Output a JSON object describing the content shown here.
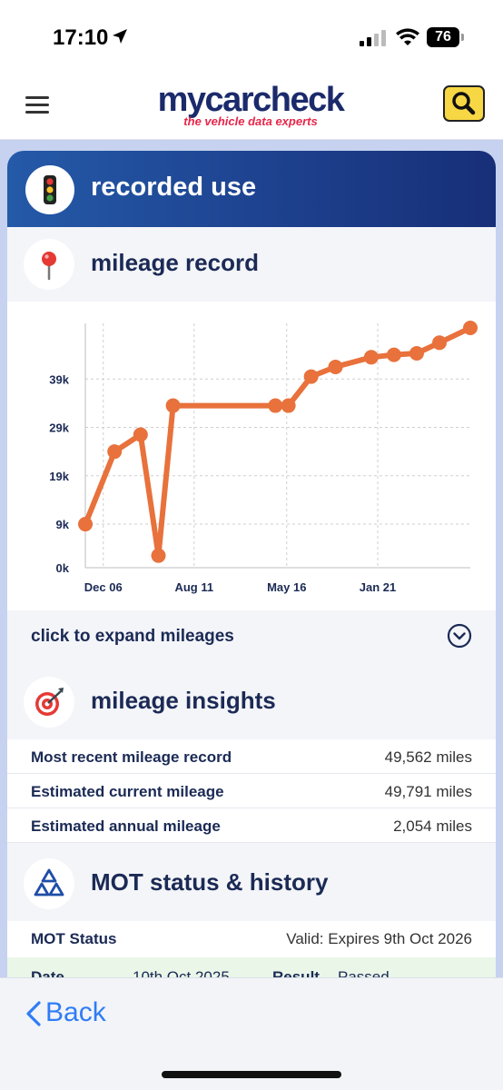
{
  "status_bar": {
    "time": "17:10",
    "battery": "76"
  },
  "header": {
    "brand": "mycarcheck",
    "tagline": "the vehicle data experts"
  },
  "recorded_use": {
    "title": "recorded use"
  },
  "mileage_record": {
    "title": "mileage record",
    "expand_label": "click to expand mileages"
  },
  "chart_data": {
    "type": "line",
    "title": "",
    "xlabel": "",
    "ylabel": "",
    "y_ticks": [
      "0k",
      "9k",
      "19k",
      "29k",
      "39k"
    ],
    "x_ticks": [
      "Dec 06",
      "Aug 11",
      "May 16",
      "Jan 21"
    ],
    "grid": true,
    "line_color": "#e8713c",
    "series": [
      {
        "values": [
          {
            "x": "2006-01",
            "y": 9000
          },
          {
            "x": "2007-07",
            "y": 24000
          },
          {
            "x": "2008-11",
            "y": 27500
          },
          {
            "x": "2009-10",
            "y": 2500
          },
          {
            "x": "2010-07",
            "y": 33500
          },
          {
            "x": "2015-10",
            "y": 33500
          },
          {
            "x": "2016-06",
            "y": 33500
          },
          {
            "x": "2017-08",
            "y": 39500
          },
          {
            "x": "2018-11",
            "y": 41500
          },
          {
            "x": "2020-09",
            "y": 43500
          },
          {
            "x": "2021-11",
            "y": 44000
          },
          {
            "x": "2023-01",
            "y": 44300
          },
          {
            "x": "2024-03",
            "y": 46500
          },
          {
            "x": "2025-10",
            "y": 49562
          }
        ]
      }
    ]
  },
  "mileage_insights": {
    "title": "mileage insights",
    "rows": [
      {
        "label": "Most recent mileage record",
        "value": "49,562 miles"
      },
      {
        "label": "Estimated current mileage",
        "value": "49,791 miles"
      },
      {
        "label": "Estimated annual mileage",
        "value": "2,054 miles"
      }
    ]
  },
  "mot": {
    "title": "MOT status & history",
    "status_label": "MOT Status",
    "status_value": "Valid: Expires 9th Oct 2026",
    "row_date_label": "Date",
    "row_date_value": "10th Oct 2025",
    "row_result_label": "Result",
    "row_result_value": "Passed"
  },
  "bottom_bar": {
    "back_label": "Back"
  }
}
